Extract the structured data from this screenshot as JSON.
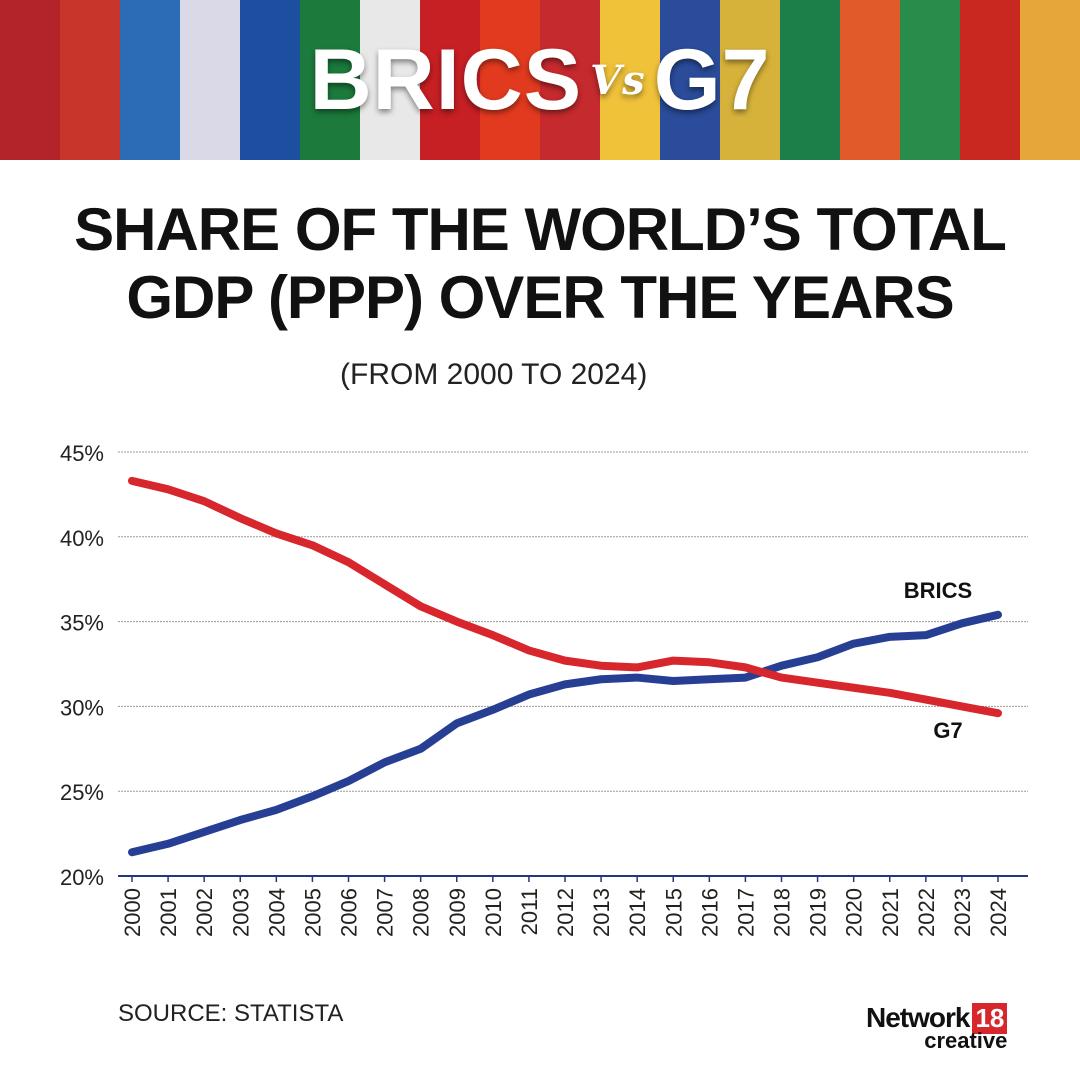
{
  "banner": {
    "left": "BRICS",
    "vs": "Vs",
    "right": "G7"
  },
  "title_line1": "SHARE OF THE WORLD’S TOTAL",
  "title_line2": "GDP (PPP) OVER THE YEARS",
  "subtitle": "(FROM 2000 TO 2024)",
  "source": "SOURCE: STATISTA",
  "logo": {
    "name": "Network",
    "number": "18",
    "tag": "creative"
  },
  "chart_data": {
    "type": "line",
    "x": [
      2000,
      2001,
      2002,
      2003,
      2004,
      2005,
      2006,
      2007,
      2008,
      2009,
      2010,
      2011,
      2012,
      2013,
      2014,
      2015,
      2016,
      2017,
      2018,
      2019,
      2020,
      2021,
      2022,
      2023,
      2024
    ],
    "x_tick_labels": [
      "2000",
      "2001",
      "2002",
      "2003",
      "2004",
      "2005",
      "2006",
      "2007",
      "2008",
      "2009",
      "2010",
      "2011",
      "2012",
      "2013",
      "2014",
      "2015",
      "2016",
      "2017",
      "2018",
      "2019",
      "2020",
      "2021",
      "2022",
      "2023",
      "2024"
    ],
    "y_tick_labels": [
      "20%",
      "25%",
      "30%",
      "35%",
      "40%",
      "45%"
    ],
    "y_ticks": [
      20,
      25,
      30,
      35,
      40,
      45
    ],
    "ylim": [
      20,
      45
    ],
    "grid": true,
    "series": [
      {
        "name": "BRICS",
        "color": "#263f94",
        "values": [
          21.4,
          21.9,
          22.6,
          23.3,
          23.9,
          24.7,
          25.6,
          26.7,
          27.5,
          29.0,
          29.8,
          30.7,
          31.3,
          31.6,
          31.7,
          31.5,
          31.6,
          31.7,
          32.4,
          32.9,
          33.7,
          34.1,
          34.2,
          34.9,
          35.4
        ]
      },
      {
        "name": "G7",
        "color": "#d7262c",
        "values": [
          43.3,
          42.8,
          42.1,
          41.1,
          40.2,
          39.5,
          38.5,
          37.2,
          35.9,
          35.0,
          34.2,
          33.3,
          32.7,
          32.4,
          32.3,
          32.7,
          32.6,
          32.3,
          31.7,
          31.4,
          31.1,
          30.8,
          30.4,
          30.0,
          29.6
        ]
      }
    ]
  },
  "banner_colors": [
    "#b3242a",
    "#c8362b",
    "#2c6bb5",
    "#d9d9e8",
    "#1c4fa0",
    "#1b7a3c",
    "#e8e8e8",
    "#c61f24",
    "#e23a1f",
    "#c52a2e",
    "#f0c23a",
    "#2a4c9a",
    "#d6b23a",
    "#1c7f4a",
    "#e05a2a",
    "#2a8c4a",
    "#c8281f",
    "#e6a63a"
  ]
}
